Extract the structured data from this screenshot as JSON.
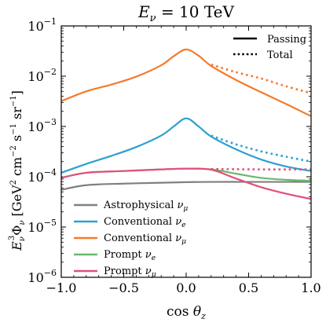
{
  "chart_data": {
    "type": "line",
    "title": "E_ν = 10 TeV",
    "title_parts": {
      "sym": "E",
      "sub": "ν",
      "rest": " = 10 TeV"
    },
    "xlabel": "cos θ_z",
    "xlabel_parts": {
      "prefix": "cos ",
      "sym": "θ",
      "sub": "z"
    },
    "ylabel": "E_ν^3 Φ_ν [GeV^2 cm^-2 s^-1 sr^-1]",
    "ylabel_parts": {
      "E": "E",
      "E_sub": "ν",
      "E_sup": "3",
      "Phi": "Φ",
      "Phi_sub": "ν",
      "unit1": " [GeV",
      "sup1": "2",
      "unit2": " cm",
      "sup2": "−2",
      "unit3": " s",
      "sup3": "−1",
      "unit4": " sr",
      "sup4": "−1",
      "close": "]"
    },
    "xlim": [
      -1.0,
      1.0
    ],
    "ylim": [
      1e-06,
      0.1
    ],
    "yscale": "log",
    "x_ticks": [
      "−1.0",
      "−0.5",
      "0.0",
      "0.5",
      "1.0"
    ],
    "x_tick_values": [
      -1.0,
      -0.5,
      0.0,
      0.5,
      1.0
    ],
    "y_ticks": [
      {
        "base": "10",
        "exp": "−6",
        "value": 1e-06
      },
      {
        "base": "10",
        "exp": "−5",
        "value": 1e-05
      },
      {
        "base": "10",
        "exp": "−4",
        "value": 0.0001
      },
      {
        "base": "10",
        "exp": "−3",
        "value": 0.001
      },
      {
        "base": "10",
        "exp": "−2",
        "value": 0.01
      },
      {
        "base": "10",
        "exp": "−1",
        "value": 0.1
      }
    ],
    "style_legend": {
      "placement": "top-right",
      "entries": [
        {
          "label": "Passing",
          "dash": "solid"
        },
        {
          "label": "Total",
          "dash": "dotted"
        }
      ]
    },
    "legend": {
      "placement": "lower-left",
      "entries": [
        {
          "key": "astro",
          "text": "Astrophysical ",
          "sym": "ν",
          "sub": "μ"
        },
        {
          "key": "conv_e",
          "text": "Conventional ",
          "sym": "ν",
          "sub": "e"
        },
        {
          "key": "conv_mu",
          "text": "Conventional ",
          "sym": "ν",
          "sub": "μ"
        },
        {
          "key": "prompt_e",
          "text": "Prompt ",
          "sym": "ν",
          "sub": "e"
        },
        {
          "key": "prompt_mu",
          "text": "Prompt ",
          "sym": "ν",
          "sub": "μ"
        }
      ]
    },
    "series": [
      {
        "key": "astro",
        "color": "#808080",
        "passing": {
          "x": [
            -1.0,
            -0.8,
            -0.5,
            -0.2,
            0.0,
            0.2,
            0.5,
            0.8,
            1.0
          ],
          "y": [
            5.5e-05,
            6.8e-05,
            7.3e-05,
            7.6e-05,
            7.8e-05,
            7.9e-05,
            7.9e-05,
            7.9e-05,
            7.9e-05
          ]
        },
        "total": null
      },
      {
        "key": "conv_e",
        "color": "#2CA0D0",
        "passing": {
          "x": [
            -1.0,
            -0.8,
            -0.6,
            -0.4,
            -0.2,
            -0.1,
            0.0,
            0.1,
            0.2,
            0.4,
            0.6,
            0.8,
            1.0
          ],
          "y": [
            0.00012,
            0.00018,
            0.00026,
            0.00039,
            0.00066,
            0.001,
            0.00145,
            0.001,
            0.00063,
            0.00035,
            0.00022,
            0.00016,
            0.00013
          ]
        },
        "total": {
          "x": [
            0.2,
            0.4,
            0.6,
            0.8,
            1.0
          ],
          "y": [
            0.00066,
            0.00044,
            0.00032,
            0.00025,
            0.0002
          ]
        }
      },
      {
        "key": "conv_mu",
        "color": "#F47A2E",
        "passing": {
          "x": [
            -1.0,
            -0.8,
            -0.6,
            -0.4,
            -0.2,
            -0.1,
            0.0,
            0.1,
            0.2,
            0.4,
            0.6,
            0.8,
            1.0
          ],
          "y": [
            0.0032,
            0.005,
            0.0068,
            0.0098,
            0.0165,
            0.025,
            0.034,
            0.0255,
            0.016,
            0.0084,
            0.0048,
            0.0028,
            0.0016
          ]
        },
        "total": {
          "x": [
            0.2,
            0.4,
            0.6,
            0.8,
            1.0
          ],
          "y": [
            0.017,
            0.012,
            0.009,
            0.0063,
            0.0046
          ]
        }
      },
      {
        "key": "prompt_e",
        "color": "#6AB86A",
        "passing": {
          "x": [
            -1.0,
            -0.8,
            -0.5,
            -0.2,
            0.0,
            0.2,
            0.4,
            0.6,
            0.8,
            1.0
          ],
          "y": [
            9.5e-05,
            0.00012,
            0.00013,
            0.00014,
            0.000145,
            0.00014,
            0.000115,
            9.5e-05,
            8.7e-05,
            8.3e-05
          ]
        },
        "total": null
      },
      {
        "key": "prompt_mu",
        "color": "#E2507A",
        "passing": {
          "x": [
            -1.0,
            -0.8,
            -0.5,
            -0.2,
            0.0,
            0.2,
            0.4,
            0.6,
            0.8,
            1.0
          ],
          "y": [
            9.5e-05,
            0.00012,
            0.00013,
            0.00014,
            0.000145,
            0.000138,
            9.2e-05,
            6.2e-05,
            4.6e-05,
            3.6e-05
          ]
        },
        "total": {
          "x": [
            0.2,
            0.4,
            0.6,
            0.8,
            1.0
          ],
          "y": [
            0.000142,
            0.000141,
            0.00014,
            0.00014,
            0.00014
          ]
        }
      }
    ]
  }
}
